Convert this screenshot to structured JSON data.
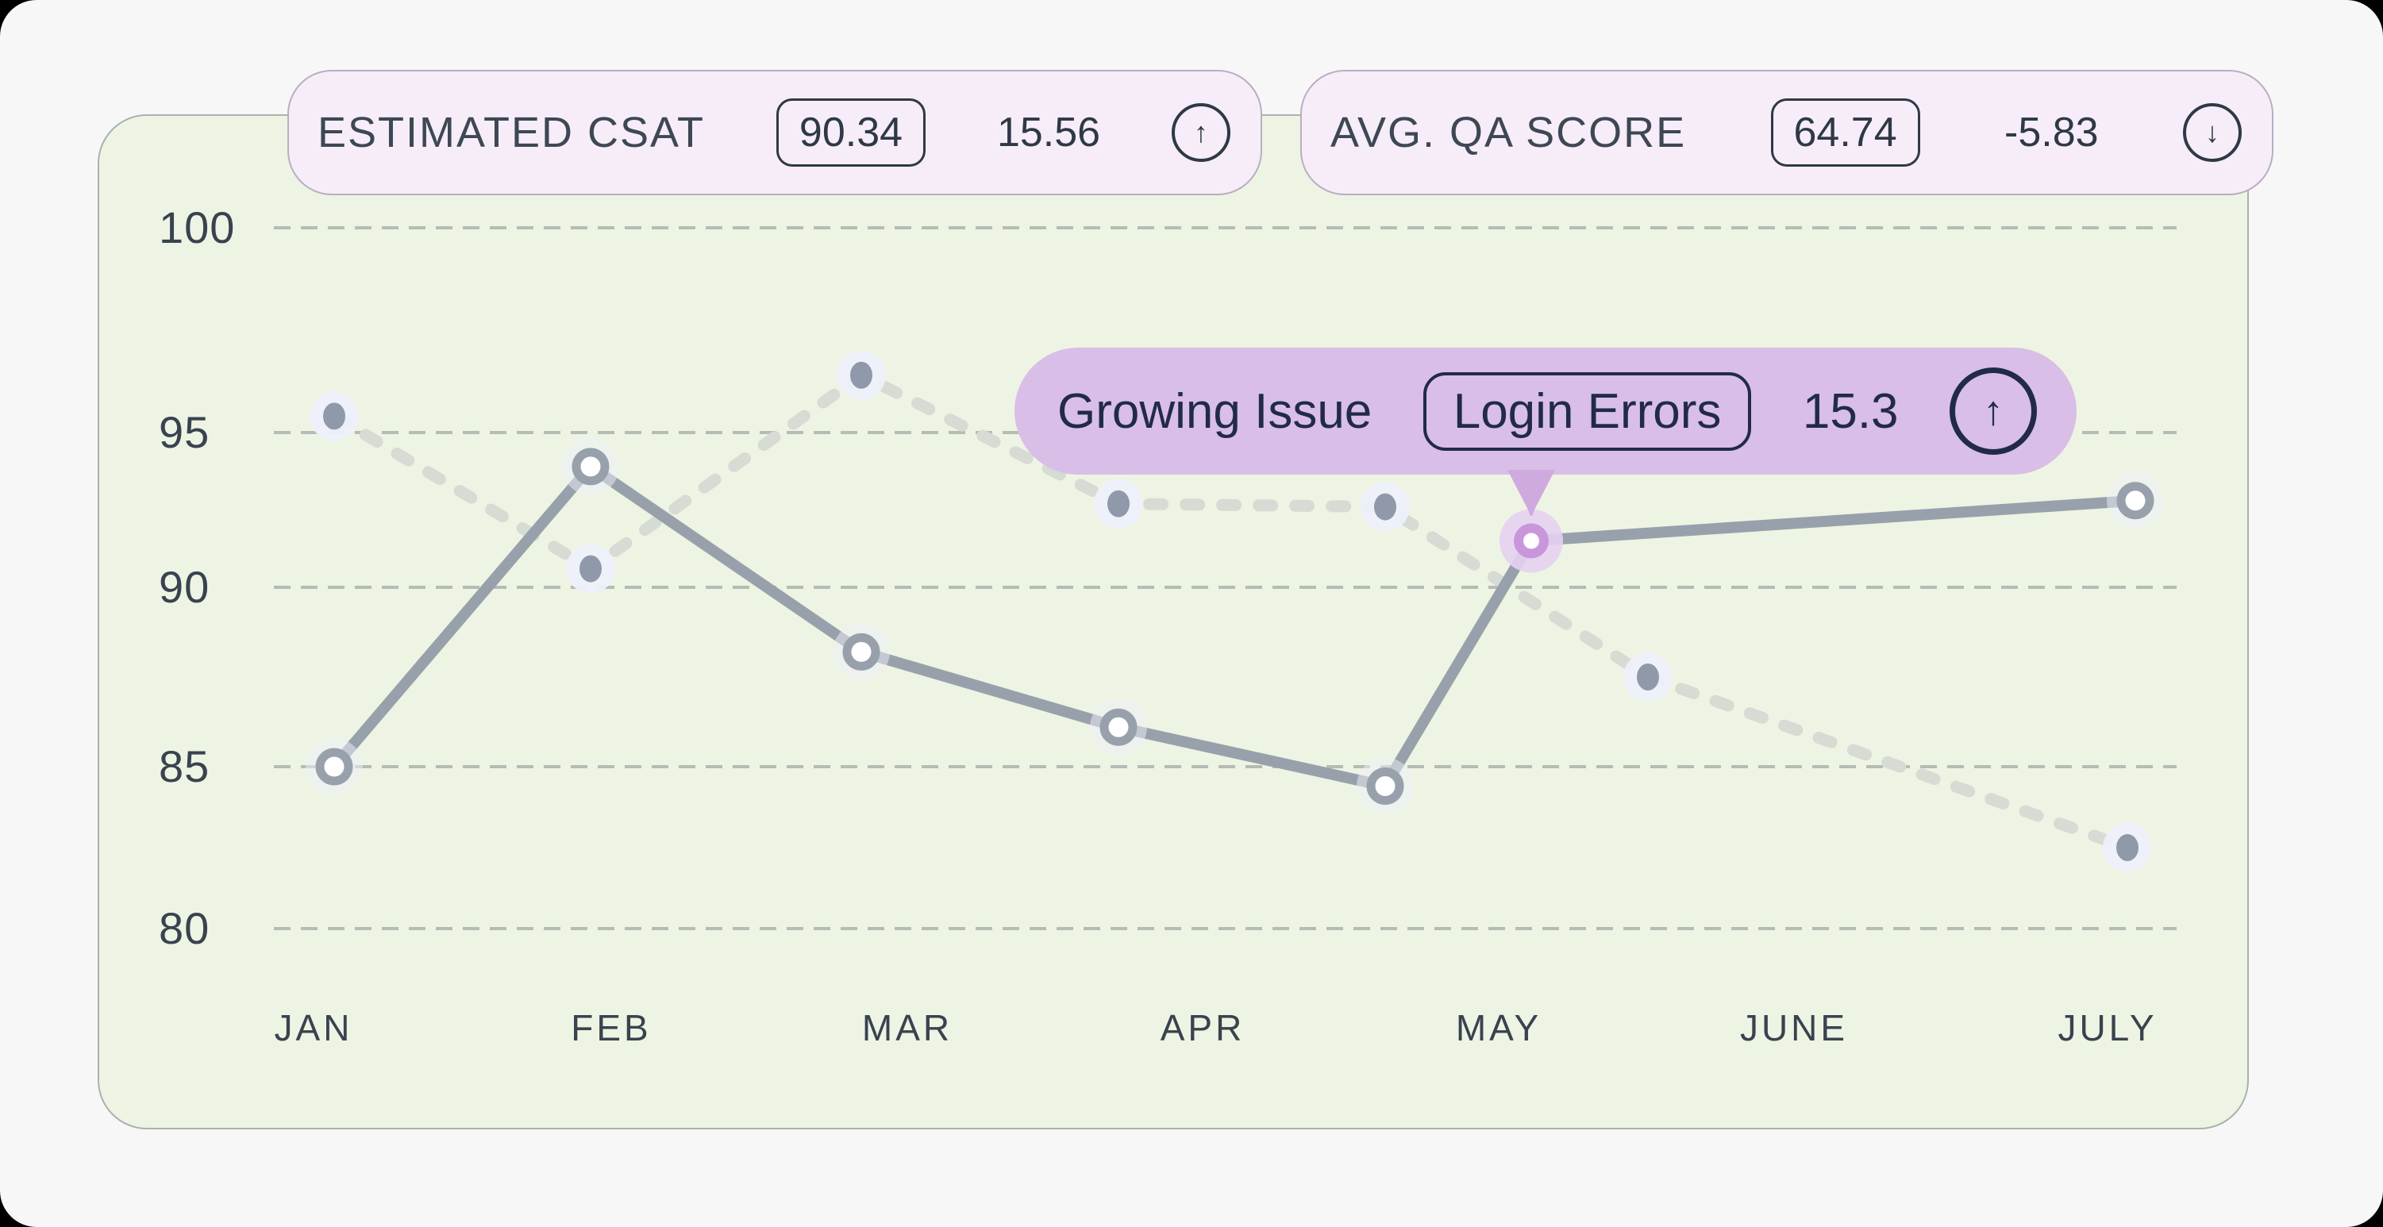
{
  "stat_pills": [
    {
      "title": "ESTIMATED CSAT",
      "value": "90.34",
      "delta": "15.56",
      "direction": "up",
      "arrow": "↑"
    },
    {
      "title": "AVG. QA SCORE",
      "value": "64.74",
      "delta": "-5.83",
      "direction": "down",
      "arrow": "↓"
    }
  ],
  "tooltip": {
    "label": "Growing Issue",
    "tag": "Login Errors",
    "delta": "15.3",
    "direction": "up",
    "arrow": "↑"
  },
  "chart_data": {
    "type": "line",
    "categories": [
      "JAN",
      "FEB",
      "MAR",
      "APR",
      "MAY",
      "JUNE",
      "JULY"
    ],
    "yticks": [
      100,
      95,
      90,
      85,
      80
    ],
    "ylim": [
      78,
      101.5
    ],
    "grid": "dashed-horizontal",
    "legend": "none",
    "series": [
      {
        "name": "ESTIMATED CSAT",
        "line_style": "solid",
        "marker": "open-circle",
        "values": [
          85.0,
          93.9,
          88.2,
          86.1,
          84.4,
          91.5,
          92.8
        ],
        "note": "6th point is a highlighted issue point between MAY and JUNE; no regular JUNE point",
        "highlight_index": 5,
        "highlight_label": "Growing Issue: Login Errors 15.3 ↑"
      },
      {
        "name": "AVG. QA SCORE",
        "line_style": "dashed",
        "marker": "dot",
        "values": [
          95.4,
          90.6,
          96.4,
          92.7,
          92.6,
          87.5,
          82.5
        ]
      }
    ]
  },
  "colors": {
    "page_bg": "#f7f7f8",
    "card_bg": "#eef4e3",
    "card_border": "#a9b2ac",
    "grid": "#a8afaa",
    "solid_line": "#98a1ab",
    "solid_marker_fill": "#ffffff",
    "dashed_line": "#d6dbd3",
    "dot_fill": "#8f99a9",
    "halo": "#edf0fa",
    "highlight_ring": "#c996dc",
    "highlight_glow": "#e6d2f1",
    "tooltip_bg": "#d9bee8",
    "pill_bg": "#f6edf9",
    "text_dark": "#2e3945",
    "axis_text": "#39434f"
  }
}
